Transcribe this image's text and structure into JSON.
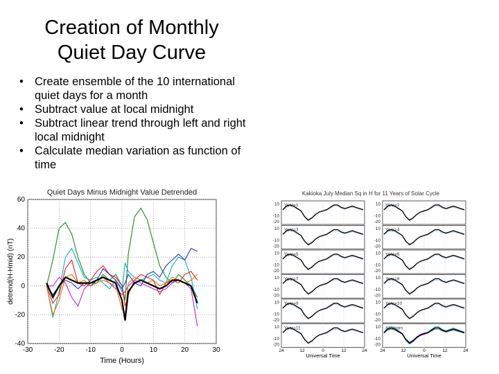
{
  "slide": {
    "title_line1": "Creation of Monthly",
    "title_line2": "Quiet Day Curve",
    "bullets": [
      "Create ensemble of the 10 international quiet days for a month",
      "Subtract value at local midnight",
      "Subtract linear trend through left and right local midnight",
      "Calculate median variation as function of time"
    ]
  },
  "chart_data": [
    {
      "type": "line",
      "title": "Quiet Days Minus Midnight Value Detrended",
      "xlabel": "Time (Hours)",
      "ylabel": "detrend(H-Hmid) (nT)",
      "xlim": [
        -30,
        30
      ],
      "ylim": [
        -40,
        60
      ],
      "xticks": [
        -30,
        -20,
        -10,
        0,
        10,
        20,
        30
      ],
      "yticks": [
        -40,
        -20,
        0,
        20,
        40,
        60
      ],
      "grid": true,
      "x": [
        -24,
        -22,
        -20,
        -18,
        -16,
        -14,
        -12,
        -10,
        -8,
        -6,
        -4,
        -2,
        0,
        1,
        2,
        4,
        6,
        8,
        10,
        12,
        14,
        16,
        18,
        20,
        22,
        24
      ],
      "series": [
        {
          "color": "#1a8a1a",
          "values": [
            0,
            18,
            40,
            44,
            36,
            20,
            8,
            2,
            2,
            8,
            4,
            8,
            0,
            -10,
            22,
            48,
            54,
            46,
            30,
            14,
            6,
            2,
            8,
            4,
            0,
            -8
          ]
        },
        {
          "color": "#00b4c8",
          "values": [
            0,
            -22,
            -4,
            20,
            26,
            16,
            6,
            4,
            6,
            2,
            -2,
            4,
            -4,
            16,
            10,
            6,
            4,
            6,
            8,
            4,
            2,
            14,
            20,
            18,
            6,
            -16
          ]
        },
        {
          "color": "#ff1a1a",
          "values": [
            0,
            -12,
            -6,
            12,
            18,
            2,
            0,
            4,
            10,
            14,
            8,
            6,
            0,
            -14,
            -6,
            4,
            8,
            6,
            4,
            -6,
            2,
            4,
            2,
            8,
            10,
            4
          ]
        },
        {
          "color": "#2233cc",
          "values": [
            0,
            -6,
            0,
            4,
            2,
            -2,
            2,
            0,
            4,
            12,
            8,
            4,
            -2,
            2,
            8,
            2,
            0,
            8,
            10,
            6,
            14,
            18,
            22,
            18,
            26,
            24
          ]
        },
        {
          "color": "#c026d3",
          "values": [
            0,
            0,
            6,
            2,
            -8,
            -14,
            -2,
            2,
            4,
            6,
            2,
            -2,
            -6,
            -4,
            0,
            4,
            2,
            0,
            -2,
            -4,
            -2,
            2,
            4,
            2,
            -2,
            -28
          ]
        },
        {
          "color": "#e07800",
          "values": [
            0,
            -20,
            -10,
            6,
            8,
            2,
            4,
            0,
            2,
            4,
            2,
            0,
            -16,
            -20,
            2,
            6,
            4,
            2,
            4,
            0,
            2,
            6,
            4,
            2,
            4,
            8
          ]
        },
        {
          "color": "#000000",
          "values": [
            2,
            -8,
            0,
            6,
            4,
            2,
            2,
            2,
            4,
            6,
            4,
            2,
            -10,
            -24,
            -4,
            2,
            4,
            2,
            0,
            -2,
            0,
            4,
            4,
            2,
            0,
            -12
          ]
        }
      ]
    },
    {
      "type": "line",
      "title": "Kakioka July Median Sq in H for 11 Years of Solar Cycle",
      "xlabel": "Universal Time",
      "panels": [
        "Year=1",
        "Year=2",
        "Year=3",
        "Year=4",
        "Year=5",
        "Year=6",
        "Year=7",
        "Year=8",
        "Year=9",
        "Year=10",
        "Year=11",
        "All Years"
      ],
      "yticks": [
        -20,
        -10,
        10
      ],
      "xticks": [
        "24",
        "12",
        "0",
        "12",
        "24"
      ],
      "profile": [
        0,
        6,
        8,
        6,
        2,
        -2,
        -12,
        -18,
        -14,
        -8,
        -4,
        -2,
        0,
        4,
        8,
        8,
        4,
        2,
        4,
        6,
        4,
        2,
        0
      ]
    }
  ]
}
